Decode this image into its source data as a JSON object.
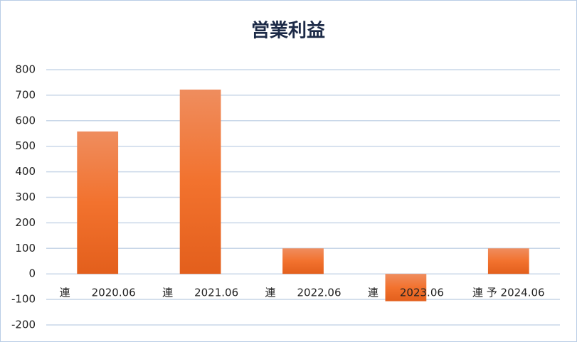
{
  "chart_data": {
    "type": "bar",
    "title": "営業利益",
    "categories": [
      "連　　2020.06",
      "連　　2021.06",
      "連　　2022.06",
      "連　　2023.06",
      "連 予 2024.06"
    ],
    "values": [
      558,
      722,
      100,
      -107,
      100
    ],
    "color": "#ec6b2a",
    "ylim": [
      -200,
      800
    ],
    "yticks": [
      -200,
      -100,
      0,
      100,
      200,
      300,
      400,
      500,
      600,
      700,
      800
    ],
    "grid": true
  }
}
